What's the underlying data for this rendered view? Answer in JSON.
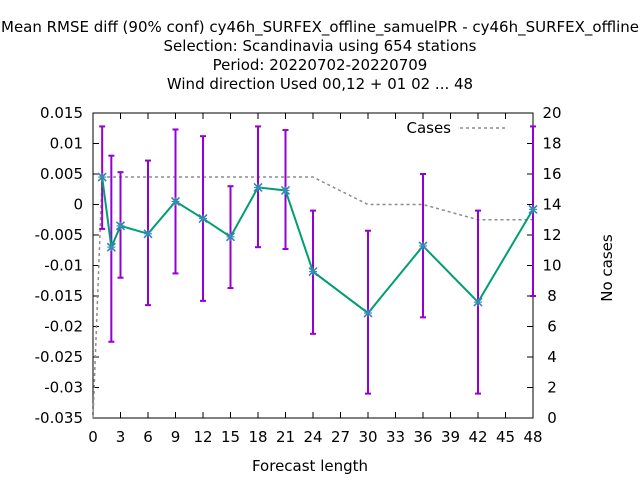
{
  "chart_data": {
    "type": "line",
    "title_lines": [
      "Mean RMSE diff (90% conf) cy46h_SURFEX_offline_samuelPR - cy46h_SURFEX_offline",
      "Selection: Scandinavia using   654 stations",
      "Period: 20220702-20220709",
      "Wind direction   Used  00,12  + 01 02 ... 48"
    ],
    "xlabel": "Forecast length",
    "ylabel": "",
    "y2label": "No cases",
    "xlim": [
      0,
      48
    ],
    "ylim": [
      -0.035,
      0.015
    ],
    "y2lim": [
      0,
      20
    ],
    "xticks": [
      0,
      3,
      6,
      9,
      12,
      15,
      18,
      21,
      24,
      27,
      30,
      33,
      36,
      39,
      42,
      45,
      48
    ],
    "yticks": [
      -0.035,
      -0.03,
      -0.025,
      -0.02,
      -0.015,
      -0.01,
      -0.005,
      0,
      0.005,
      0.01,
      0.015
    ],
    "ytick_labels": [
      "-0.035",
      "-0.03",
      "-0.025",
      "-0.02",
      "-0.015",
      "-0.01",
      "-0.005",
      "0",
      "0.005",
      "0.01",
      "0.015"
    ],
    "y2ticks": [
      0,
      2,
      4,
      6,
      8,
      10,
      12,
      14,
      16,
      18,
      20
    ],
    "legend": {
      "label": "Cases",
      "placement": "top-right"
    },
    "series": [
      {
        "type": "line-errorbars",
        "color": "#009e73",
        "errorbar_color": "#9400d3",
        "x": [
          1,
          2,
          3,
          6,
          9,
          12,
          15,
          18,
          21,
          24,
          30,
          36,
          42,
          48
        ],
        "values": [
          0.0045,
          -0.007,
          -0.0035,
          -0.0048,
          0.0005,
          -0.0023,
          -0.0053,
          0.0028,
          0.0023,
          -0.011,
          -0.0178,
          -0.0068,
          -0.016,
          -0.0008
        ],
        "lower": [
          -0.004,
          -0.0225,
          -0.012,
          -0.0165,
          -0.0113,
          -0.0158,
          -0.0137,
          -0.007,
          -0.0073,
          -0.0212,
          -0.031,
          -0.0185,
          -0.031,
          -0.015
        ],
        "upper": [
          0.0128,
          0.008,
          0.0053,
          0.0072,
          0.0123,
          0.0112,
          0.003,
          0.0128,
          0.0122,
          -0.001,
          -0.0043,
          0.005,
          -0.001,
          0.0128
        ]
      },
      {
        "name": "Cases",
        "type": "line-dashed",
        "axis": "y2",
        "color": "#8c8c8c",
        "x": [
          0,
          1,
          3,
          6,
          9,
          12,
          15,
          18,
          21,
          24,
          30,
          36,
          42,
          48
        ],
        "values": [
          0,
          15.8,
          15.8,
          15.8,
          15.8,
          15.8,
          15.8,
          15.8,
          15.8,
          15.8,
          14.0,
          14.0,
          13.0,
          13.0
        ]
      }
    ]
  }
}
